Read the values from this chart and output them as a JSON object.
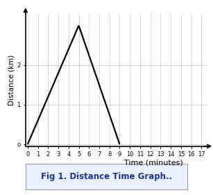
{
  "line_x": [
    0,
    5,
    9
  ],
  "line_y": [
    0,
    3,
    0
  ],
  "xlim": [
    -0.2,
    17.5
  ],
  "ylim": [
    -0.05,
    3.3
  ],
  "xticks": [
    0,
    1,
    2,
    3,
    4,
    5,
    6,
    7,
    8,
    9,
    10,
    11,
    12,
    13,
    14,
    15,
    16,
    17
  ],
  "yticks": [
    0,
    1,
    2
  ],
  "ytick_labels": [
    "o",
    "1",
    "2"
  ],
  "xlabel": "Time (minutes)",
  "ylabel": "Distance (km)",
  "line_color": "#000000",
  "line_width": 1.6,
  "grid_color": "#bbbbbb",
  "background_color": "#ffffff",
  "caption": "Fig 1. Distance Time Graph..",
  "caption_color": "#1a3399",
  "caption_fontsize": 8.5,
  "caption_box_facecolor": "#eaf0ff",
  "caption_box_edge": "#999999",
  "tick_fontsize": 6,
  "label_fontsize": 7.5,
  "xlabel_fontsize": 8
}
